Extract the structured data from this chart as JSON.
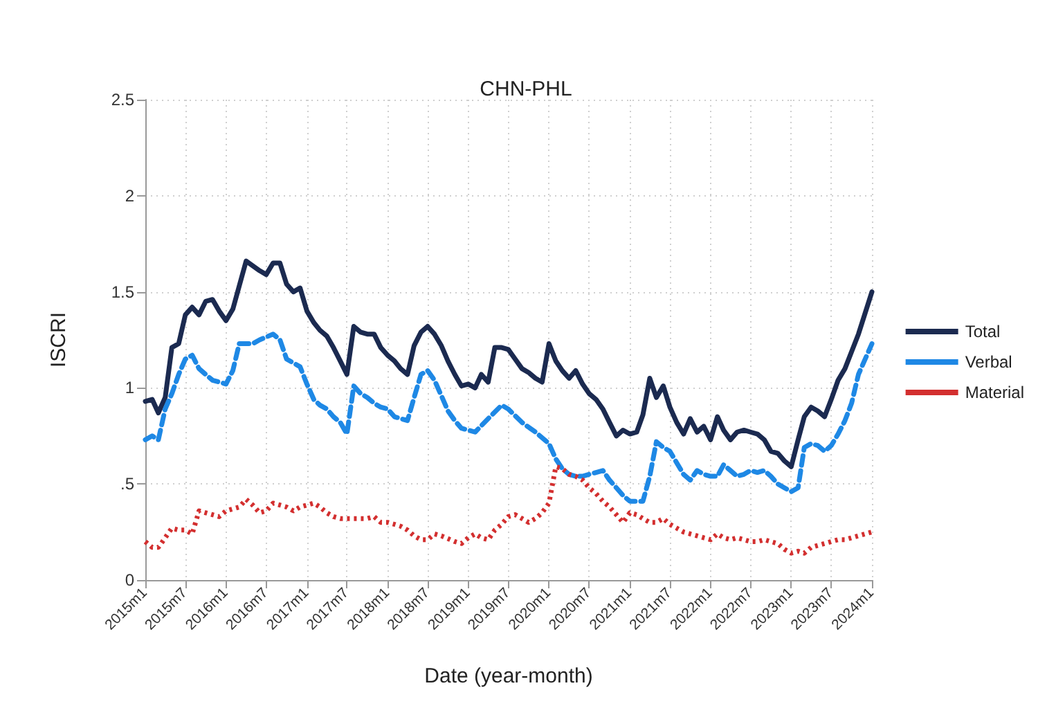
{
  "chart_data": {
    "type": "line",
    "title": "CHN-PHL",
    "xlabel": "Date (year-month)",
    "ylabel": "ISCRI",
    "xlim": [
      "2015-01",
      "2024-01"
    ],
    "xticks": [
      {
        "value": "2015-01",
        "label": "2015m1"
      },
      {
        "value": "2015-07",
        "label": "2015m7"
      },
      {
        "value": "2016-01",
        "label": "2016m1"
      },
      {
        "value": "2016-07",
        "label": "2016m7"
      },
      {
        "value": "2017-01",
        "label": "2017m1"
      },
      {
        "value": "2017-07",
        "label": "2017m7"
      },
      {
        "value": "2018-01",
        "label": "2018m1"
      },
      {
        "value": "2018-07",
        "label": "2018m7"
      },
      {
        "value": "2019-01",
        "label": "2019m1"
      },
      {
        "value": "2019-07",
        "label": "2019m7"
      },
      {
        "value": "2020-01",
        "label": "2020m1"
      },
      {
        "value": "2020-07",
        "label": "2020m7"
      },
      {
        "value": "2021-01",
        "label": "2021m1"
      },
      {
        "value": "2021-07",
        "label": "2021m7"
      },
      {
        "value": "2022-01",
        "label": "2022m1"
      },
      {
        "value": "2022-07",
        "label": "2022m7"
      },
      {
        "value": "2023-01",
        "label": "2023m1"
      },
      {
        "value": "2023-07",
        "label": "2023m7"
      },
      {
        "value": "2024-01",
        "label": "2024m1"
      }
    ],
    "ylim": [
      0,
      2.5
    ],
    "yticks": [
      0,
      {
        "value": 0.5,
        "label": ".5"
      },
      1,
      1.5,
      2,
      2.5
    ],
    "grid": true,
    "legend": "right",
    "marker": "none",
    "series": [
      {
        "name": "Total",
        "color": "#1b2a50",
        "line_style": "solid",
        "x": [
          "2015-01",
          "2015-02",
          "2015-03",
          "2015-04",
          "2015-05",
          "2015-06",
          "2015-07",
          "2015-08",
          "2015-09",
          "2015-10",
          "2015-11",
          "2015-12",
          "2016-01",
          "2016-02",
          "2016-04",
          "2016-06",
          "2016-07",
          "2016-08",
          "2016-09",
          "2016-10",
          "2016-11",
          "2016-12",
          "2017-01",
          "2017-02",
          "2017-03",
          "2017-04",
          "2017-05",
          "2017-06",
          "2017-07",
          "2017-08",
          "2017-09",
          "2017-10",
          "2017-11",
          "2017-12",
          "2018-01",
          "2018-02",
          "2018-03",
          "2018-04",
          "2018-05",
          "2018-06",
          "2018-07",
          "2018-08",
          "2018-09",
          "2018-10",
          "2018-11",
          "2018-12",
          "2019-01",
          "2019-02",
          "2019-03",
          "2019-04",
          "2019-05",
          "2019-06",
          "2019-07",
          "2019-08",
          "2019-09",
          "2019-10",
          "2019-11",
          "2019-12",
          "2020-01",
          "2020-02",
          "2020-03",
          "2020-04",
          "2020-05",
          "2020-06",
          "2020-07",
          "2020-08",
          "2020-09",
          "2020-10",
          "2020-11",
          "2020-12",
          "2021-01",
          "2021-02",
          "2021-03",
          "2021-04",
          "2021-05",
          "2021-06",
          "2021-07",
          "2021-08",
          "2021-09",
          "2021-10",
          "2021-11",
          "2021-12",
          "2022-01",
          "2022-02",
          "2022-03",
          "2022-04",
          "2022-05",
          "2022-06",
          "2022-07",
          "2022-08",
          "2022-09",
          "2022-10",
          "2022-11",
          "2022-12",
          "2023-01",
          "2023-02",
          "2023-03",
          "2023-04",
          "2023-05",
          "2023-06",
          "2023-07",
          "2023-08",
          "2023-09",
          "2023-11",
          "2024-01"
        ],
        "values": [
          0.93,
          0.94,
          0.87,
          0.95,
          1.21,
          1.23,
          1.38,
          1.42,
          1.38,
          1.45,
          1.46,
          1.4,
          1.35,
          1.41,
          1.66,
          1.61,
          1.59,
          1.65,
          1.65,
          1.54,
          1.5,
          1.52,
          1.4,
          1.34,
          1.3,
          1.27,
          1.21,
          1.14,
          1.07,
          1.32,
          1.29,
          1.28,
          1.28,
          1.21,
          1.17,
          1.14,
          1.1,
          1.07,
          1.22,
          1.29,
          1.32,
          1.28,
          1.22,
          1.14,
          1.07,
          1.01,
          1.02,
          1.0,
          1.07,
          1.03,
          1.21,
          1.21,
          1.2,
          1.15,
          1.1,
          1.08,
          1.05,
          1.03,
          1.23,
          1.14,
          1.09,
          1.05,
          1.09,
          1.02,
          0.97,
          0.94,
          0.89,
          0.82,
          0.75,
          0.78,
          0.76,
          0.77,
          0.86,
          1.05,
          0.95,
          1.01,
          0.9,
          0.82,
          0.76,
          0.84,
          0.77,
          0.8,
          0.73,
          0.85,
          0.78,
          0.73,
          0.77,
          0.78,
          0.77,
          0.76,
          0.73,
          0.67,
          0.66,
          0.62,
          0.59,
          0.73,
          0.85,
          0.9,
          0.88,
          0.85,
          0.94,
          1.04,
          1.1,
          1.28,
          1.5
        ]
      },
      {
        "name": "Verbal",
        "color": "#1e88e5",
        "line_style": "dashed",
        "x": [
          "2015-01",
          "2015-02",
          "2015-03",
          "2015-04",
          "2015-05",
          "2015-06",
          "2015-07",
          "2015-08",
          "2015-09",
          "2015-10",
          "2015-11",
          "2016-01",
          "2016-02",
          "2016-03",
          "2016-04",
          "2016-05",
          "2016-06",
          "2016-08",
          "2016-09",
          "2016-10",
          "2016-11",
          "2016-12",
          "2017-01",
          "2017-02",
          "2017-03",
          "2017-04",
          "2017-05",
          "2017-06",
          "2017-07",
          "2017-08",
          "2017-09",
          "2017-10",
          "2017-11",
          "2017-12",
          "2018-01",
          "2018-02",
          "2018-04",
          "2018-05",
          "2018-06",
          "2018-07",
          "2018-08",
          "2018-09",
          "2018-10",
          "2018-11",
          "2018-12",
          "2019-01",
          "2019-02",
          "2019-04",
          "2019-06",
          "2019-07",
          "2019-09",
          "2019-11",
          "2020-01",
          "2020-02",
          "2020-03",
          "2020-04",
          "2020-05",
          "2020-06",
          "2020-07",
          "2020-08",
          "2020-09",
          "2020-10",
          "2020-11",
          "2020-12",
          "2021-01",
          "2021-03",
          "2021-04",
          "2021-05",
          "2021-06",
          "2021-07",
          "2021-08",
          "2021-09",
          "2021-10",
          "2021-11",
          "2021-12",
          "2022-01",
          "2022-02",
          "2022-03",
          "2022-04",
          "2022-05",
          "2022-06",
          "2022-07",
          "2022-08",
          "2022-09",
          "2022-10",
          "2022-11",
          "2022-12",
          "2023-01",
          "2023-02",
          "2023-03",
          "2023-04",
          "2023-05",
          "2023-06",
          "2023-07",
          "2023-08",
          "2023-09",
          "2023-10",
          "2023-11",
          "2024-01"
        ],
        "values": [
          0.73,
          0.75,
          0.73,
          0.89,
          0.97,
          1.07,
          1.15,
          1.17,
          1.1,
          1.07,
          1.04,
          1.02,
          1.09,
          1.23,
          1.23,
          1.23,
          1.25,
          1.28,
          1.25,
          1.15,
          1.13,
          1.11,
          1.02,
          0.94,
          0.91,
          0.89,
          0.85,
          0.82,
          0.76,
          1.01,
          0.97,
          0.95,
          0.92,
          0.9,
          0.89,
          0.85,
          0.83,
          0.95,
          1.07,
          1.09,
          1.04,
          0.96,
          0.88,
          0.83,
          0.79,
          0.78,
          0.77,
          0.84,
          0.91,
          0.89,
          0.82,
          0.77,
          0.71,
          0.63,
          0.58,
          0.55,
          0.54,
          0.54,
          0.55,
          0.56,
          0.57,
          0.52,
          0.48,
          0.44,
          0.41,
          0.41,
          0.54,
          0.72,
          0.69,
          0.67,
          0.61,
          0.55,
          0.52,
          0.57,
          0.55,
          0.54,
          0.54,
          0.6,
          0.57,
          0.54,
          0.55,
          0.57,
          0.56,
          0.57,
          0.54,
          0.5,
          0.48,
          0.46,
          0.48,
          0.69,
          0.71,
          0.7,
          0.67,
          0.7,
          0.76,
          0.83,
          0.92,
          1.07,
          1.23
        ]
      },
      {
        "name": "Material",
        "color": "#d32f2f",
        "line_style": "dotted",
        "x": [
          "2015-01",
          "2015-02",
          "2015-03",
          "2015-04",
          "2015-05",
          "2015-06",
          "2015-07",
          "2015-08",
          "2015-09",
          "2015-10",
          "2015-11",
          "2015-12",
          "2016-01",
          "2016-03",
          "2016-04",
          "2016-05",
          "2016-06",
          "2016-07",
          "2016-08",
          "2016-09",
          "2016-10",
          "2016-11",
          "2016-12",
          "2017-01",
          "2017-02",
          "2017-03",
          "2017-04",
          "2017-05",
          "2017-06",
          "2017-08",
          "2017-09",
          "2017-10",
          "2017-11",
          "2017-12",
          "2018-01",
          "2018-02",
          "2018-03",
          "2018-04",
          "2018-05",
          "2018-06",
          "2018-07",
          "2018-08",
          "2018-09",
          "2018-11",
          "2018-12",
          "2019-01",
          "2019-02",
          "2019-03",
          "2019-04",
          "2019-05",
          "2019-06",
          "2019-07",
          "2019-08",
          "2019-09",
          "2019-10",
          "2019-11",
          "2019-12",
          "2020-01",
          "2020-02",
          "2020-03",
          "2020-04",
          "2020-05",
          "2020-06",
          "2020-07",
          "2020-08",
          "2020-09",
          "2020-10",
          "2020-11",
          "2020-12",
          "2021-01",
          "2021-02",
          "2021-03",
          "2021-04",
          "2021-05",
          "2021-06",
          "2021-07",
          "2021-08",
          "2021-09",
          "2021-10",
          "2021-11",
          "2021-12",
          "2022-01",
          "2022-02",
          "2022-03",
          "2022-04",
          "2022-05",
          "2022-06",
          "2022-07",
          "2022-08",
          "2022-09",
          "2022-10",
          "2022-11",
          "2022-12",
          "2023-01",
          "2023-02",
          "2023-03",
          "2023-04",
          "2023-05",
          "2023-06",
          "2023-07",
          "2023-08",
          "2023-09",
          "2023-10",
          "2024-01"
        ],
        "values": [
          0.2,
          0.17,
          0.17,
          0.22,
          0.27,
          0.26,
          0.26,
          0.24,
          0.36,
          0.35,
          0.34,
          0.33,
          0.36,
          0.38,
          0.42,
          0.39,
          0.35,
          0.36,
          0.4,
          0.39,
          0.38,
          0.36,
          0.38,
          0.39,
          0.4,
          0.38,
          0.35,
          0.33,
          0.32,
          0.32,
          0.32,
          0.32,
          0.33,
          0.3,
          0.3,
          0.29,
          0.28,
          0.26,
          0.23,
          0.21,
          0.21,
          0.24,
          0.23,
          0.2,
          0.19,
          0.22,
          0.24,
          0.22,
          0.21,
          0.26,
          0.29,
          0.33,
          0.34,
          0.32,
          0.3,
          0.32,
          0.35,
          0.4,
          0.59,
          0.58,
          0.55,
          0.54,
          0.52,
          0.48,
          0.45,
          0.41,
          0.38,
          0.34,
          0.3,
          0.35,
          0.34,
          0.32,
          0.3,
          0.3,
          0.32,
          0.29,
          0.27,
          0.25,
          0.24,
          0.23,
          0.22,
          0.21,
          0.24,
          0.22,
          0.21,
          0.22,
          0.21,
          0.2,
          0.2,
          0.21,
          0.2,
          0.19,
          0.16,
          0.14,
          0.15,
          0.14,
          0.17,
          0.18,
          0.19,
          0.2,
          0.21,
          0.21,
          0.22,
          0.25
        ]
      }
    ]
  }
}
